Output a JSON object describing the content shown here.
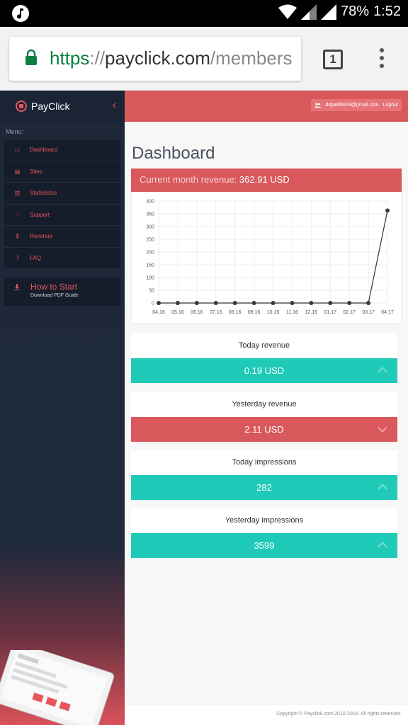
{
  "status_bar": {
    "battery": "78%",
    "time": "1:52"
  },
  "browser": {
    "url_scheme": "https",
    "url_sep": "://",
    "url_host": "payclick.com",
    "url_path": "/members",
    "tab_count": "1"
  },
  "sidebar": {
    "brand": "PayClick",
    "menu_label": "Menu:",
    "items": [
      {
        "label": "Dashboard",
        "icon": "dashboard-icon"
      },
      {
        "label": "Sites",
        "icon": "sites-icon"
      },
      {
        "label": "Statististcs",
        "icon": "statistics-icon"
      },
      {
        "label": "Support",
        "icon": "support-icon"
      },
      {
        "label": "Revenue",
        "icon": "dollar-icon"
      },
      {
        "label": "FAQ",
        "icon": "question-icon"
      }
    ],
    "howto_title": "How to Start",
    "howto_sub": "Download PDF Guide"
  },
  "topbar": {
    "email": "ddpatil6609@gmail.com",
    "logout": "Logout"
  },
  "main": {
    "title": "Dashboard",
    "revenue_label": "Current month revenue:",
    "revenue_value": "362.91 USD"
  },
  "chart_data": {
    "type": "line",
    "categories": [
      "04.16",
      "05.16",
      "06.16",
      "07.16",
      "08.16",
      "09.16",
      "10.16",
      "11.16",
      "12.16",
      "01.17",
      "02.17",
      "03.17",
      "04.17"
    ],
    "values": [
      0,
      0,
      0,
      0,
      0,
      0,
      0,
      0,
      0,
      0,
      0,
      0,
      362.91
    ],
    "ylim": [
      0,
      400
    ],
    "yticks": [
      0,
      50,
      100,
      150,
      200,
      250,
      300,
      350,
      400
    ],
    "grid": true,
    "line_color": "#333333"
  },
  "stats": [
    {
      "label": "Today revenue",
      "value": "0.19 USD",
      "trend": "up"
    },
    {
      "label": "Yesterday revenue",
      "value": "2.11 USD",
      "trend": "down"
    },
    {
      "label": "Today impressions",
      "value": "282",
      "trend": "up"
    },
    {
      "label": "Yesterday impressions",
      "value": "3599",
      "trend": "up"
    }
  ],
  "footer": {
    "copyright": "Copyright © Payclick.com 2010-2016. All rights reserved."
  },
  "colors": {
    "accent": "#d9585c",
    "teal": "#1fcab8",
    "sidebar": "#1d2738"
  }
}
